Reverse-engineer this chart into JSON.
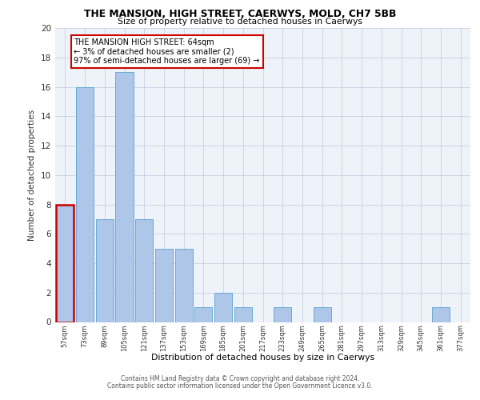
{
  "title": "THE MANSION, HIGH STREET, CAERWYS, MOLD, CH7 5BB",
  "subtitle": "Size of property relative to detached houses in Caerwys",
  "xlabel": "Distribution of detached houses by size in Caerwys",
  "ylabel": "Number of detached properties",
  "bin_labels": [
    "57sqm",
    "73sqm",
    "89sqm",
    "105sqm",
    "121sqm",
    "137sqm",
    "153sqm",
    "169sqm",
    "185sqm",
    "201sqm",
    "217sqm",
    "233sqm",
    "249sqm",
    "265sqm",
    "281sqm",
    "297sqm",
    "313sqm",
    "329sqm",
    "345sqm",
    "361sqm",
    "377sqm"
  ],
  "bar_heights": [
    8,
    16,
    7,
    17,
    7,
    5,
    5,
    1,
    2,
    1,
    0,
    1,
    0,
    1,
    0,
    0,
    0,
    0,
    0,
    1,
    0
  ],
  "bar_color": "#aec6e8",
  "bar_edge_color": "#6aaad4",
  "highlight_bar_index": 0,
  "highlight_edge_color": "#cc0000",
  "annotation_text": "THE MANSION HIGH STREET: 64sqm\n← 3% of detached houses are smaller (2)\n97% of semi-detached houses are larger (69) →",
  "annotation_box_edge_color": "#cc0000",
  "ylim": [
    0,
    20
  ],
  "yticks": [
    0,
    2,
    4,
    6,
    8,
    10,
    12,
    14,
    16,
    18,
    20
  ],
  "background_color": "#eef2f9",
  "grid_color": "#c8d0e0",
  "footer_line1": "Contains HM Land Registry data © Crown copyright and database right 2024.",
  "footer_line2": "Contains public sector information licensed under the Open Government Licence v3.0."
}
